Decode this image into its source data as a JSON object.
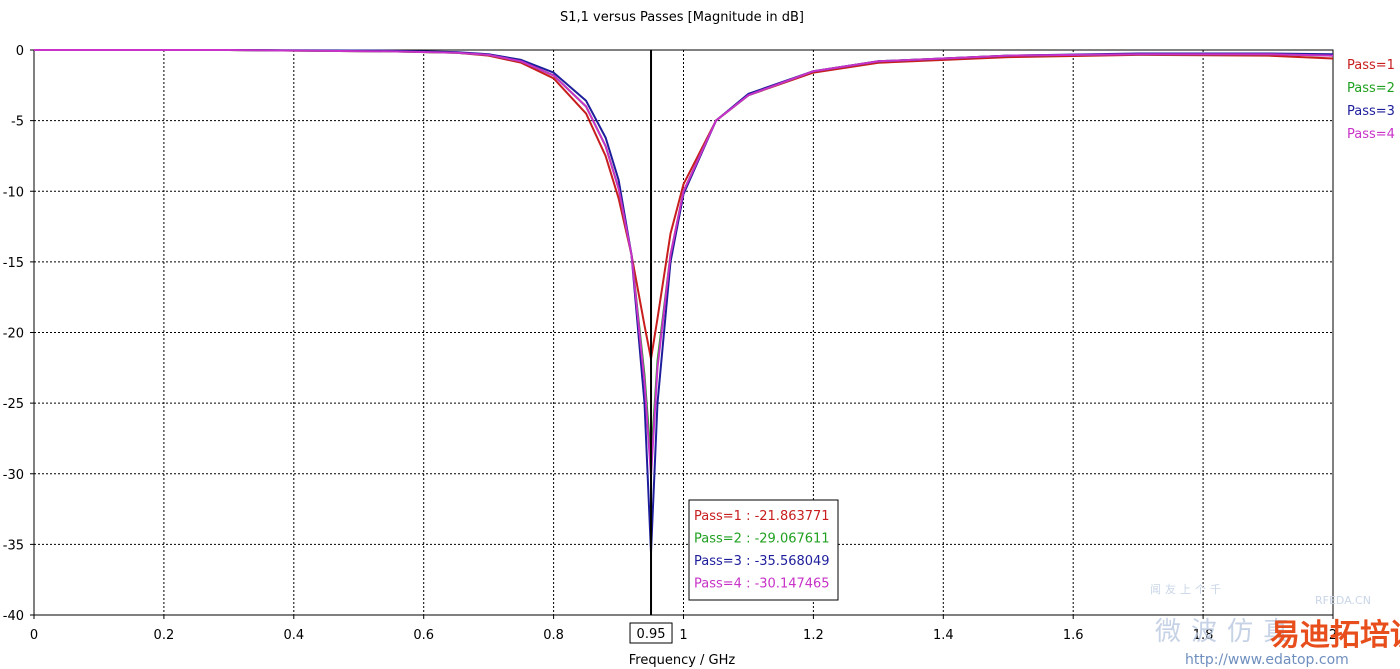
{
  "chart_data": {
    "type": "line",
    "title": "S1,1 versus Passes [Magnitude in dB]",
    "xlabel": "Frequency / GHz",
    "ylabel": "",
    "xlim": [
      0,
      2
    ],
    "ylim": [
      -40,
      0
    ],
    "x_ticks": [
      0,
      0.2,
      0.4,
      0.6,
      0.8,
      1,
      1.2,
      1.4,
      1.6,
      1.8,
      2
    ],
    "x_tick_labels": [
      "0",
      "0.2",
      "0.4",
      "0.6",
      "0.8",
      "1",
      "1.2",
      "1.4",
      "1.6",
      "1.8",
      "2"
    ],
    "y_ticks": [
      0,
      -5,
      -10,
      -15,
      -20,
      -25,
      -30,
      -35,
      -40
    ],
    "y_tick_labels": [
      "0",
      "-5",
      "-10",
      "-15",
      "-20",
      "-25",
      "-30",
      "-35",
      "-40"
    ],
    "grid": true,
    "legend_position": "right",
    "marker": {
      "x": 0.95,
      "label": "0.95"
    },
    "series": [
      {
        "name": "Pass=1",
        "color": "#c81e1e",
        "x": [
          0,
          0.3,
          0.55,
          0.65,
          0.7,
          0.75,
          0.8,
          0.85,
          0.88,
          0.9,
          0.92,
          0.94,
          0.95,
          0.96,
          0.98,
          1.0,
          1.05,
          1.1,
          1.2,
          1.3,
          1.5,
          1.7,
          1.9,
          2.0
        ],
        "values": [
          0,
          0,
          -0.1,
          -0.2,
          -0.4,
          -0.9,
          -2.0,
          -4.5,
          -7.5,
          -10.5,
          -14.5,
          -19.5,
          -21.863771,
          -19.0,
          -13.0,
          -9.5,
          -5.0,
          -3.2,
          -1.6,
          -0.9,
          -0.5,
          -0.35,
          -0.4,
          -0.6
        ],
        "readout": "Pass=1 : -21.863771"
      },
      {
        "name": "Pass=2",
        "color": "#20a020",
        "x": [
          0,
          0.3,
          0.55,
          0.65,
          0.7,
          0.75,
          0.8,
          0.85,
          0.88,
          0.9,
          0.92,
          0.94,
          0.95,
          0.96,
          0.98,
          1.0,
          1.05,
          1.1,
          1.2,
          1.3,
          1.5,
          1.7,
          1.9,
          2.0
        ],
        "values": [
          0,
          0,
          -0.1,
          -0.2,
          -0.35,
          -0.8,
          -1.8,
          -4.0,
          -6.8,
          -9.8,
          -14.5,
          -23.0,
          -29.067611,
          -22.0,
          -14.5,
          -10.0,
          -5.0,
          -3.2,
          -1.5,
          -0.8,
          -0.4,
          -0.3,
          -0.3,
          -0.4
        ],
        "readout": "Pass=2 : -29.067611"
      },
      {
        "name": "Pass=3",
        "color": "#1e1e9c",
        "x": [
          0,
          0.3,
          0.55,
          0.65,
          0.7,
          0.75,
          0.8,
          0.85,
          0.88,
          0.9,
          0.92,
          0.94,
          0.95,
          0.96,
          0.98,
          1.0,
          1.05,
          1.1,
          1.2,
          1.3,
          1.5,
          1.7,
          1.9,
          2.0
        ],
        "values": [
          0,
          0,
          -0.05,
          -0.15,
          -0.3,
          -0.7,
          -1.6,
          -3.6,
          -6.2,
          -9.2,
          -14.5,
          -25.0,
          -35.568049,
          -25.0,
          -15.0,
          -10.2,
          -5.0,
          -3.1,
          -1.5,
          -0.8,
          -0.4,
          -0.25,
          -0.25,
          -0.3
        ],
        "readout": "Pass=3 : -35.568049"
      },
      {
        "name": "Pass=4",
        "color": "#c832c8",
        "x": [
          0,
          0.3,
          0.55,
          0.65,
          0.7,
          0.75,
          0.8,
          0.85,
          0.88,
          0.9,
          0.92,
          0.94,
          0.95,
          0.96,
          0.98,
          1.0,
          1.05,
          1.1,
          1.2,
          1.3,
          1.5,
          1.7,
          1.9,
          2.0
        ],
        "values": [
          0,
          0,
          -0.1,
          -0.2,
          -0.35,
          -0.8,
          -1.8,
          -4.0,
          -6.8,
          -9.8,
          -14.5,
          -23.5,
          -30.147465,
          -22.5,
          -14.5,
          -10.0,
          -5.0,
          -3.2,
          -1.5,
          -0.8,
          -0.4,
          -0.3,
          -0.3,
          -0.4
        ],
        "readout": "Pass=4 : -30.147465"
      }
    ]
  },
  "watermark": {
    "line1": "闻友上个千",
    "line2": "微波仿真",
    "brand": "易迪拓培训",
    "site": "RFEDA.CN",
    "url": "http://www.edatop.com"
  }
}
